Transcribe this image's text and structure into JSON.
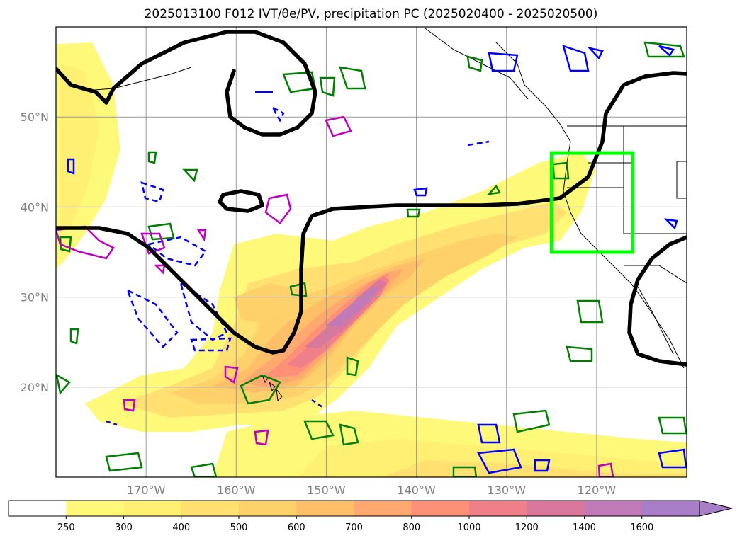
{
  "title": "2025013100 F012 IVT/θe/PV, precipitation PC (2025020400 - 2025020500)",
  "map": {
    "lon_range": [
      -180,
      -110
    ],
    "lat_range": [
      10,
      60
    ],
    "lat_ticks": [
      {
        "value": 20,
        "label": "20°N"
      },
      {
        "value": 30,
        "label": "30°N"
      },
      {
        "value": 40,
        "label": "40°N"
      },
      {
        "value": 50,
        "label": "50°N"
      }
    ],
    "lon_ticks": [
      {
        "value": -170,
        "label": "170°W"
      },
      {
        "value": -160,
        "label": "160°W"
      },
      {
        "value": -150,
        "label": "150°W"
      },
      {
        "value": -140,
        "label": "140°W"
      },
      {
        "value": -130,
        "label": "130°W"
      },
      {
        "value": -120,
        "label": "120°W"
      }
    ],
    "grid": true,
    "highlight_box": {
      "lon": [
        -125,
        -116
      ],
      "lat": [
        35,
        46
      ],
      "color": "#00ff00"
    }
  },
  "colorbar": {
    "levels": [
      "250",
      "300",
      "400",
      "500",
      "600",
      "700",
      "800",
      "1000",
      "1200",
      "1400",
      "1600"
    ],
    "colors": [
      "#ffffff",
      "#fff97a",
      "#fff073",
      "#ffe070",
      "#ffd16b",
      "#ffbf68",
      "#ffa870",
      "#ff9078",
      "#ef7f88",
      "#d8789c",
      "#c07ab8",
      "#a87ec8"
    ],
    "extend": "max"
  },
  "contour_colors": {
    "theta_e": "#000000",
    "pv_neg": "#0000ff",
    "pv_pos": "#008000",
    "pv_mag": "#c000c0"
  }
}
